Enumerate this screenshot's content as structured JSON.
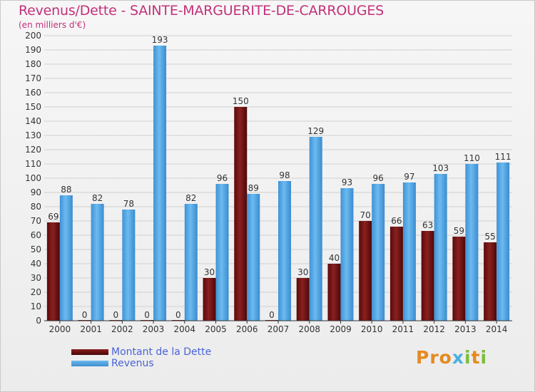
{
  "header": {
    "title": "Revenus/Dette - SAINTE-MARGUERITE-DE-CARROUGES",
    "subtitle": "(en milliers d'€)"
  },
  "brand": {
    "text": "Proxiti"
  },
  "colors": {
    "debt": "#6e1212",
    "revenue": "#4aa3e6",
    "title": "#c2307a",
    "legend_text": "#4a62d8"
  },
  "chart_data": {
    "type": "bar",
    "categories": [
      "2000",
      "2001",
      "2002",
      "2003",
      "2004",
      "2005",
      "2006",
      "2007",
      "2008",
      "2009",
      "2010",
      "2011",
      "2012",
      "2013",
      "2014"
    ],
    "series": [
      {
        "name": "Montant de la Dette",
        "values": [
          69,
          0,
          0,
          0,
          0,
          30,
          150,
          0,
          30,
          40,
          70,
          66,
          63,
          59,
          55
        ]
      },
      {
        "name": "Revenus",
        "values": [
          88,
          82,
          78,
          193,
          82,
          96,
          89,
          98,
          129,
          93,
          96,
          97,
          103,
          110,
          111
        ]
      }
    ],
    "ylim": [
      0,
      200
    ],
    "yticks": [
      0,
      10,
      20,
      30,
      40,
      50,
      60,
      70,
      80,
      90,
      100,
      110,
      120,
      130,
      140,
      150,
      160,
      170,
      180,
      190,
      200
    ],
    "grid": true,
    "legend_position": "bottom-left"
  }
}
